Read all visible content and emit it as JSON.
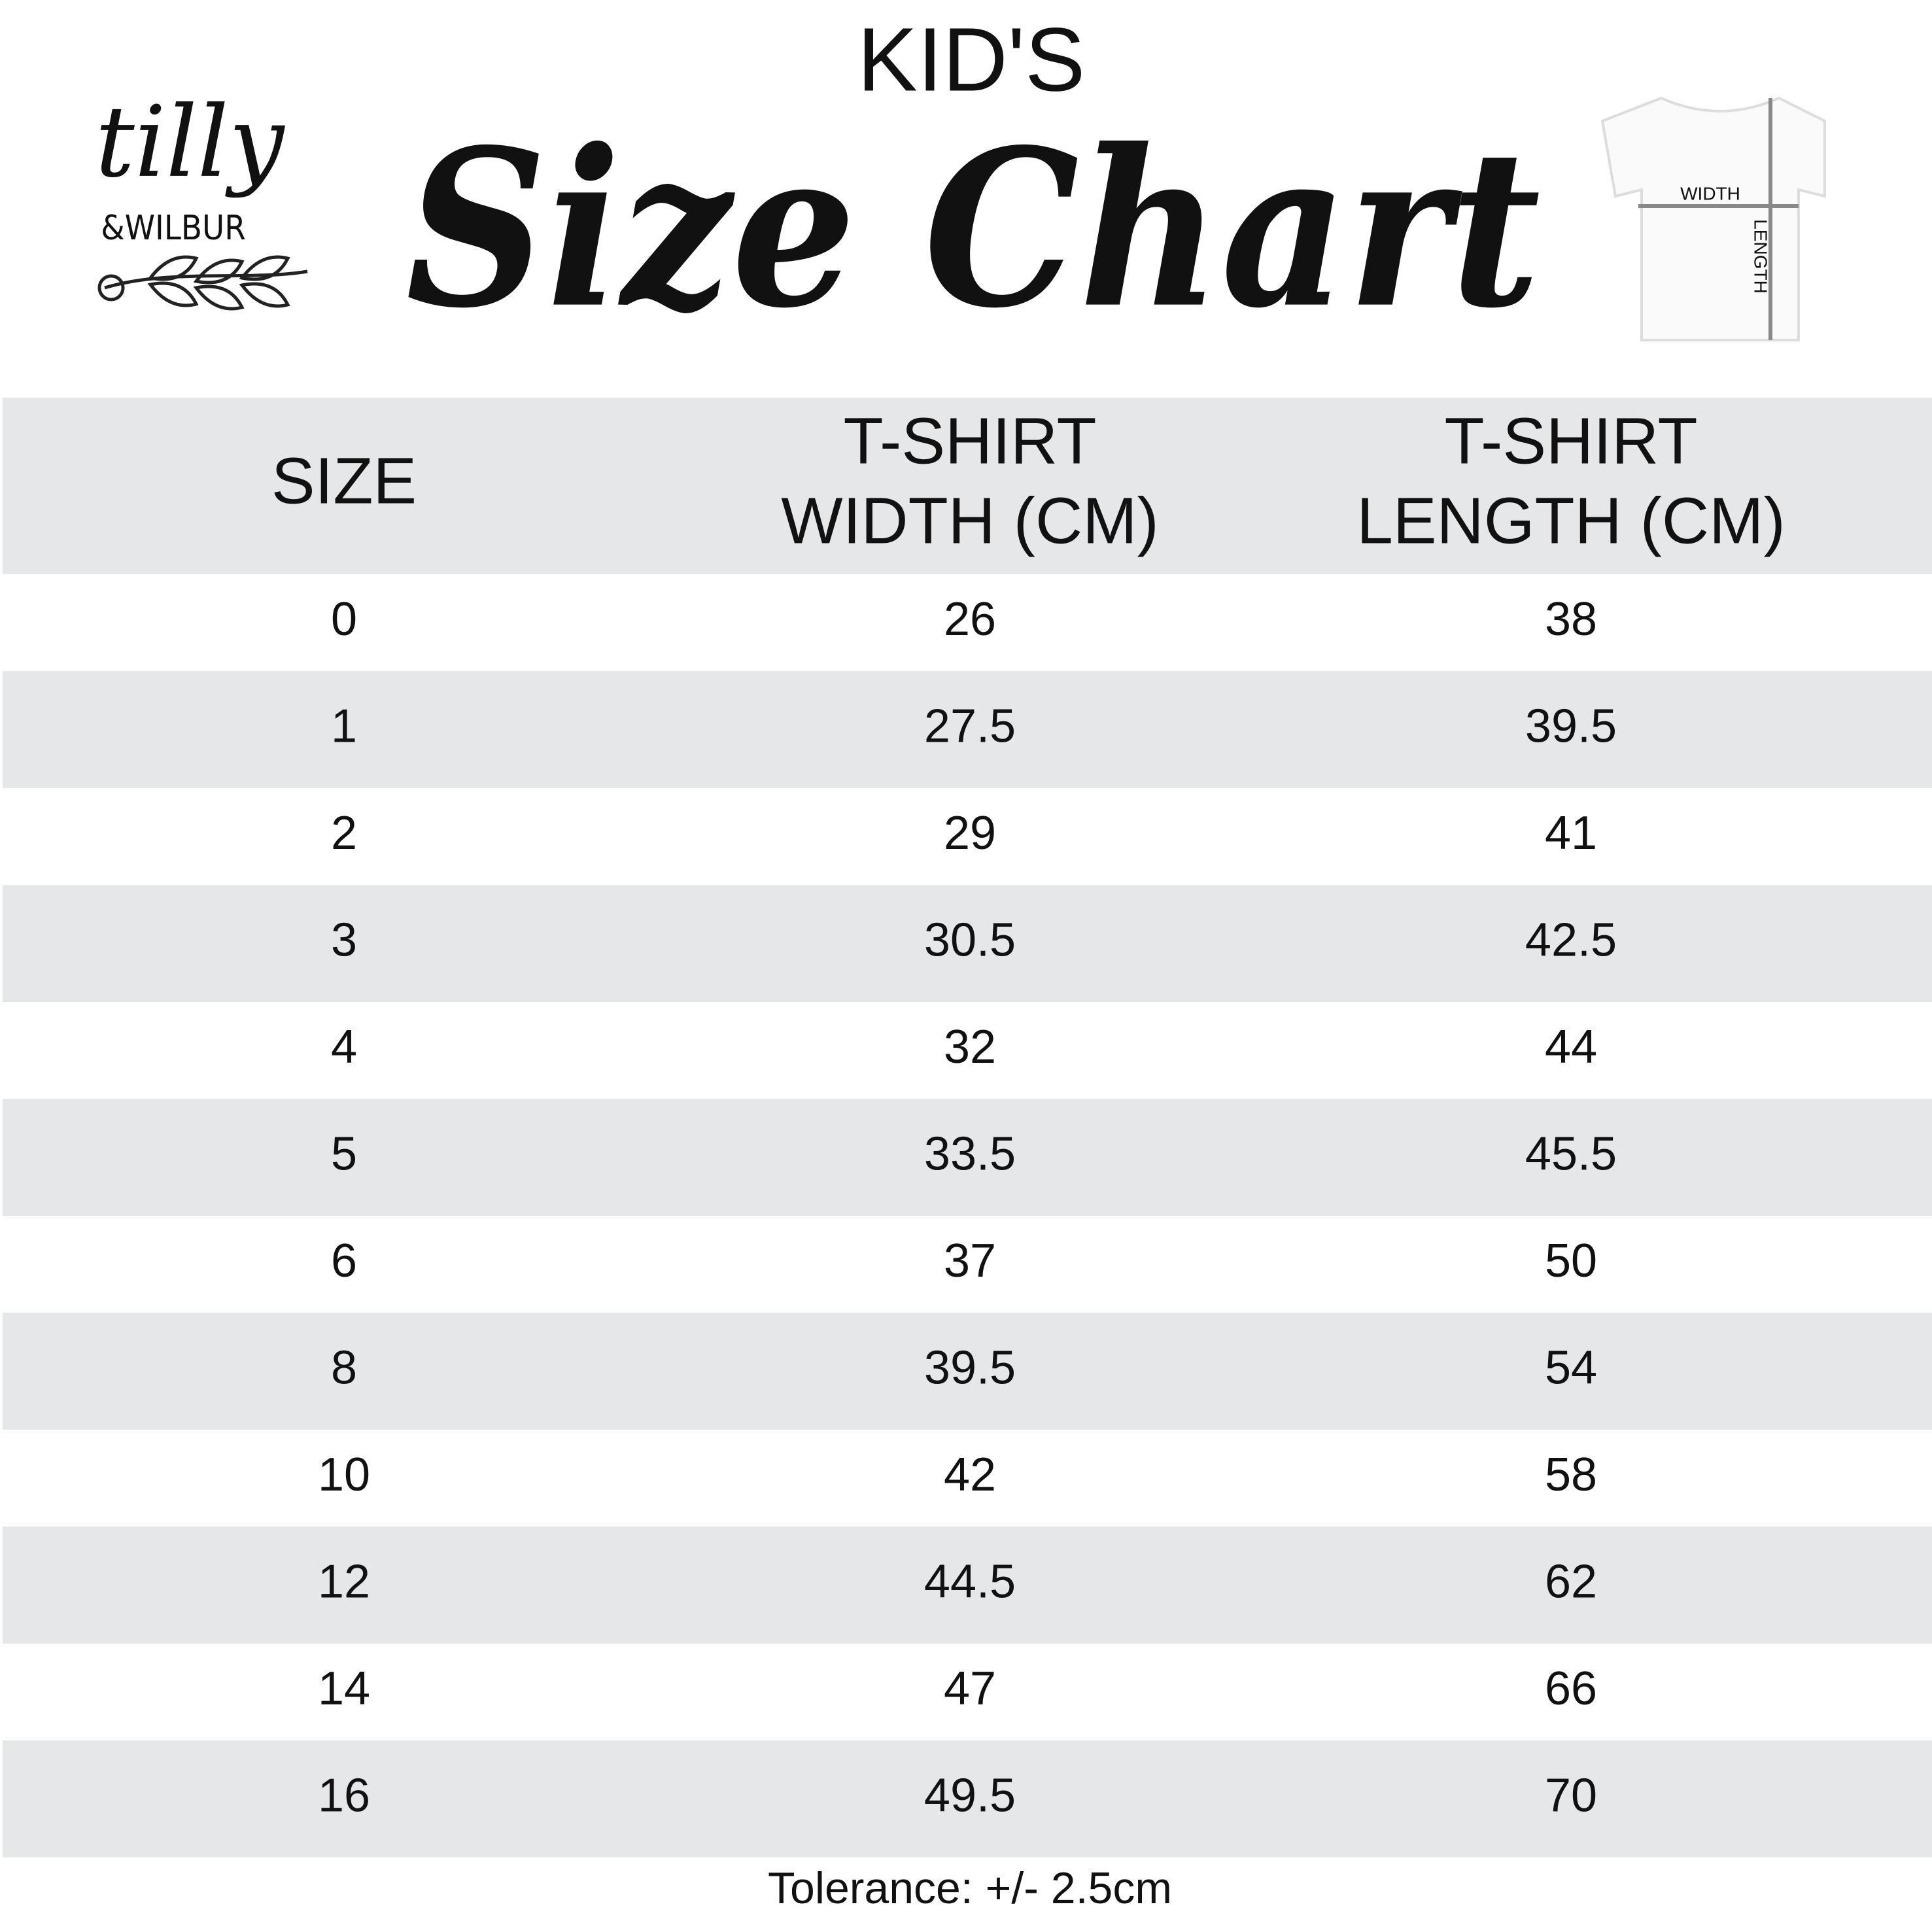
{
  "logo": {
    "name": "tilly",
    "subname": "&WILBUR"
  },
  "header": {
    "kicker": "KID'S",
    "title": "Size Chart"
  },
  "diagram": {
    "width_label": "WIDTH",
    "length_label": "LENGTH"
  },
  "table": {
    "columns": [
      [
        "SIZE"
      ],
      [
        "T-SHIRT",
        "WIDTH (CM)"
      ],
      [
        "T-SHIRT",
        "LENGTH (CM)"
      ]
    ],
    "rows": [
      [
        "0",
        "26",
        "38"
      ],
      [
        "1",
        "27.5",
        "39.5"
      ],
      [
        "2",
        "29",
        "41"
      ],
      [
        "3",
        "30.5",
        "42.5"
      ],
      [
        "4",
        "32",
        "44"
      ],
      [
        "5",
        "33.5",
        "45.5"
      ],
      [
        "6",
        "37",
        "50"
      ],
      [
        "8",
        "39.5",
        "54"
      ],
      [
        "10",
        "42",
        "58"
      ],
      [
        "12",
        "44.5",
        "62"
      ],
      [
        "14",
        "47",
        "66"
      ],
      [
        "16",
        "49.5",
        "70"
      ]
    ]
  },
  "footer": {
    "note": "Tolerance: +/- 2.5cm"
  }
}
